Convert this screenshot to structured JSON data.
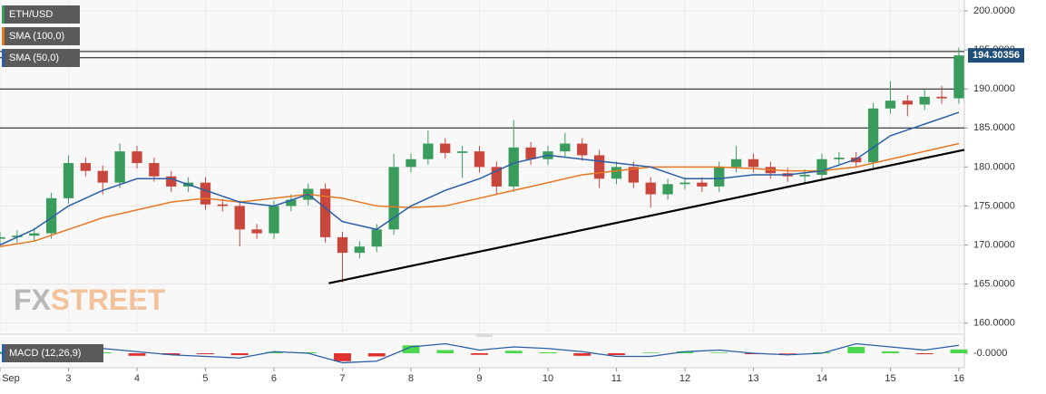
{
  "chart_data": {
    "type": "candlestick",
    "series_name": "ETH/USD",
    "logo": [
      "FX",
      "STREET"
    ],
    "colors": {
      "up": "#3a9c5c",
      "down": "#c9463d"
    },
    "x": [
      2,
      2.25,
      2.5,
      2.75,
      3,
      3.25,
      3.5,
      3.75,
      4,
      4.25,
      4.5,
      4.75,
      5,
      5.25,
      5.5,
      5.75,
      6,
      6.25,
      6.5,
      6.75,
      7,
      7.25,
      7.5,
      7.75,
      8,
      8.25,
      8.5,
      8.75,
      9,
      9.25,
      9.5,
      9.75,
      10,
      10.25,
      10.5,
      10.75,
      11,
      11.25,
      11.5,
      11.75,
      12,
      12.25,
      12.5,
      12.75,
      13,
      13.25,
      13.5,
      13.75,
      14,
      14.25,
      14.5,
      14.75,
      15,
      15.25,
      15.5,
      15.75,
      16
    ],
    "open": [
      170.8,
      171,
      171.2,
      171.5,
      176,
      180.5,
      179.5,
      178,
      182,
      180.5,
      178.8,
      177.5,
      178,
      175.2,
      175,
      172,
      171.5,
      175,
      175.8,
      177.2,
      171,
      169,
      169.8,
      172,
      180,
      181,
      183,
      181.8,
      182,
      180,
      177.5,
      182.5,
      181,
      182,
      183,
      181.5,
      178.5,
      180,
      178,
      176.5,
      177.8,
      178,
      177.5,
      180,
      181,
      180,
      179.2,
      178.8,
      179,
      181,
      181.2,
      180.6,
      187.5,
      188.5,
      188,
      189,
      188.8
    ],
    "high": [
      171.7,
      171.9,
      172.2,
      176.7,
      181.5,
      181.2,
      180.2,
      183,
      182.7,
      181.2,
      179.5,
      178.7,
      178.7,
      175.9,
      175.7,
      172.7,
      175.7,
      176.5,
      177.9,
      177.9,
      171.7,
      170.5,
      172.7,
      181.7,
      181.7,
      184.7,
      183.7,
      182.7,
      182.7,
      180.7,
      186,
      183.2,
      182.7,
      184.4,
      183.7,
      182.2,
      180.7,
      180.7,
      178.7,
      178.5,
      178.7,
      178.7,
      180.7,
      182.7,
      181.7,
      180.7,
      179.9,
      179.7,
      181.7,
      181.9,
      181.9,
      188.2,
      191,
      189.2,
      190,
      190.4,
      195.3
    ],
    "low": [
      170.1,
      170.3,
      170.5,
      170.8,
      175.3,
      178.8,
      176.5,
      177.3,
      179.8,
      178.1,
      176.8,
      176.8,
      174.5,
      174.3,
      169.8,
      170.8,
      170.8,
      174.3,
      175.1,
      170.3,
      165.2,
      168.3,
      169.1,
      171.3,
      179.3,
      180.3,
      181.1,
      178.6,
      179.3,
      176.5,
      176.8,
      180.3,
      180.3,
      181.3,
      180.8,
      177.3,
      177.8,
      177.3,
      174.8,
      175.8,
      177.1,
      176.8,
      176.8,
      179.3,
      179.3,
      178.5,
      178.1,
      177.8,
      178.3,
      180.3,
      179.9,
      179.9,
      186.8,
      186.5,
      187.3,
      188.1,
      188.1
    ],
    "close": [
      171,
      171.2,
      171.5,
      176,
      180.5,
      179.5,
      178,
      182,
      180.5,
      178.8,
      177.5,
      178,
      175.2,
      175,
      172,
      171.5,
      175,
      175.8,
      177.2,
      171,
      169,
      169.8,
      172,
      180,
      181,
      183,
      181.8,
      182,
      180,
      177.5,
      182.5,
      181,
      182,
      183,
      181.5,
      178.5,
      180,
      178,
      176.5,
      177.8,
      178,
      177.5,
      180,
      181,
      180,
      179.2,
      178.8,
      179,
      181,
      181.2,
      180.6,
      187.5,
      188.5,
      188,
      189,
      188.8,
      194.3
    ],
    "series": [
      {
        "name": "SMA (100,0)",
        "color": "#e87722",
        "x": [
          2,
          2.5,
          3,
          3.5,
          4,
          4.5,
          5,
          5.5,
          6,
          6.5,
          7,
          7.5,
          8,
          8.5,
          9,
          9.5,
          10,
          10.5,
          11,
          11.5,
          12,
          12.5,
          13,
          13.5,
          14,
          14.5,
          15,
          15.5,
          16
        ],
        "values": [
          169.8,
          170.5,
          172,
          173.5,
          174.5,
          175.5,
          176,
          175.5,
          176,
          176.5,
          176,
          175,
          174.8,
          175,
          176,
          177,
          178,
          179,
          179.5,
          180,
          180,
          180,
          179.8,
          179.5,
          179.5,
          180,
          181,
          182,
          183
        ]
      },
      {
        "name": "SMA (50,0)",
        "color": "#2a5fa8",
        "x": [
          2,
          2.5,
          3,
          3.5,
          4,
          4.5,
          5,
          5.5,
          6,
          6.5,
          7,
          7.5,
          8,
          8.5,
          9,
          9.5,
          10,
          10.5,
          11,
          11.5,
          12,
          12.5,
          13,
          13.5,
          14,
          14.5,
          15,
          15.5,
          16
        ],
        "values": [
          170,
          172,
          175,
          177,
          178.5,
          178.5,
          177,
          175.5,
          175,
          176.5,
          173,
          172,
          175,
          177,
          178.5,
          180.5,
          181.5,
          181,
          180.5,
          180,
          178.5,
          178.5,
          179,
          179,
          179.5,
          181,
          184,
          185.5,
          187
        ]
      }
    ],
    "levels": [
      194.8,
      194,
      190,
      185
    ],
    "trendline": {
      "x": [
        6.8,
        16.08
      ],
      "y": [
        165.1,
        182.2
      ]
    },
    "last_price": 194.30356,
    "xlim": [
      2,
      16.08
    ],
    "xticks": [
      {
        "value": 2,
        "label": "Sep"
      },
      3,
      4,
      5,
      6,
      7,
      8,
      9,
      10,
      11,
      12,
      13,
      14,
      15,
      16
    ],
    "ylim": [
      158.8,
      201.4
    ],
    "yticks": [
      {
        "value": 200,
        "label": "200.0000"
      },
      {
        "value": 195,
        "label": "195.0000"
      },
      {
        "value": 190,
        "label": "190.0000"
      },
      {
        "value": 185,
        "label": "185.0000"
      },
      {
        "value": 180,
        "label": "180.0000"
      },
      {
        "value": 175,
        "label": "175.0000"
      },
      {
        "value": 170,
        "label": "170.0000"
      },
      {
        "value": 165,
        "label": "165.0000"
      },
      {
        "value": 160,
        "label": "160.0000"
      }
    ],
    "grid": true,
    "macd": {
      "name": "MACD (12,26,9)",
      "x": [
        2,
        2.5,
        3,
        3.5,
        4,
        4.5,
        5,
        5.5,
        6,
        6.5,
        7,
        7.5,
        8,
        8.5,
        9,
        9.5,
        10,
        10.5,
        11,
        11.5,
        12,
        12.5,
        13,
        13.5,
        14,
        14.5,
        15,
        15.5,
        16
      ],
      "histogram": [
        0.5,
        -0.5,
        1,
        0.3,
        -0.8,
        -0.5,
        -0.3,
        -0.6,
        0.4,
        0.3,
        -2.5,
        -1,
        2.5,
        1,
        -0.5,
        0.8,
        0.3,
        -0.8,
        -0.6,
        0.2,
        0.6,
        0.2,
        -0.3,
        -0.2,
        0.3,
        2,
        0.6,
        -0.3,
        1.2
      ],
      "line": [
        0,
        0.5,
        2,
        1.5,
        0.5,
        -0.5,
        -1,
        -1.5,
        0.5,
        0,
        -3,
        -2.5,
        2,
        3,
        1,
        2,
        1.5,
        0.5,
        -1,
        -1,
        0.5,
        1,
        0,
        -0.5,
        0,
        3,
        2,
        1,
        2.5
      ],
      "line_color": "#2a5fa8",
      "ylim": [
        -4,
        4
      ],
      "yticks": [
        {
          "value": 0,
          "label": "-0.0000"
        }
      ]
    }
  }
}
